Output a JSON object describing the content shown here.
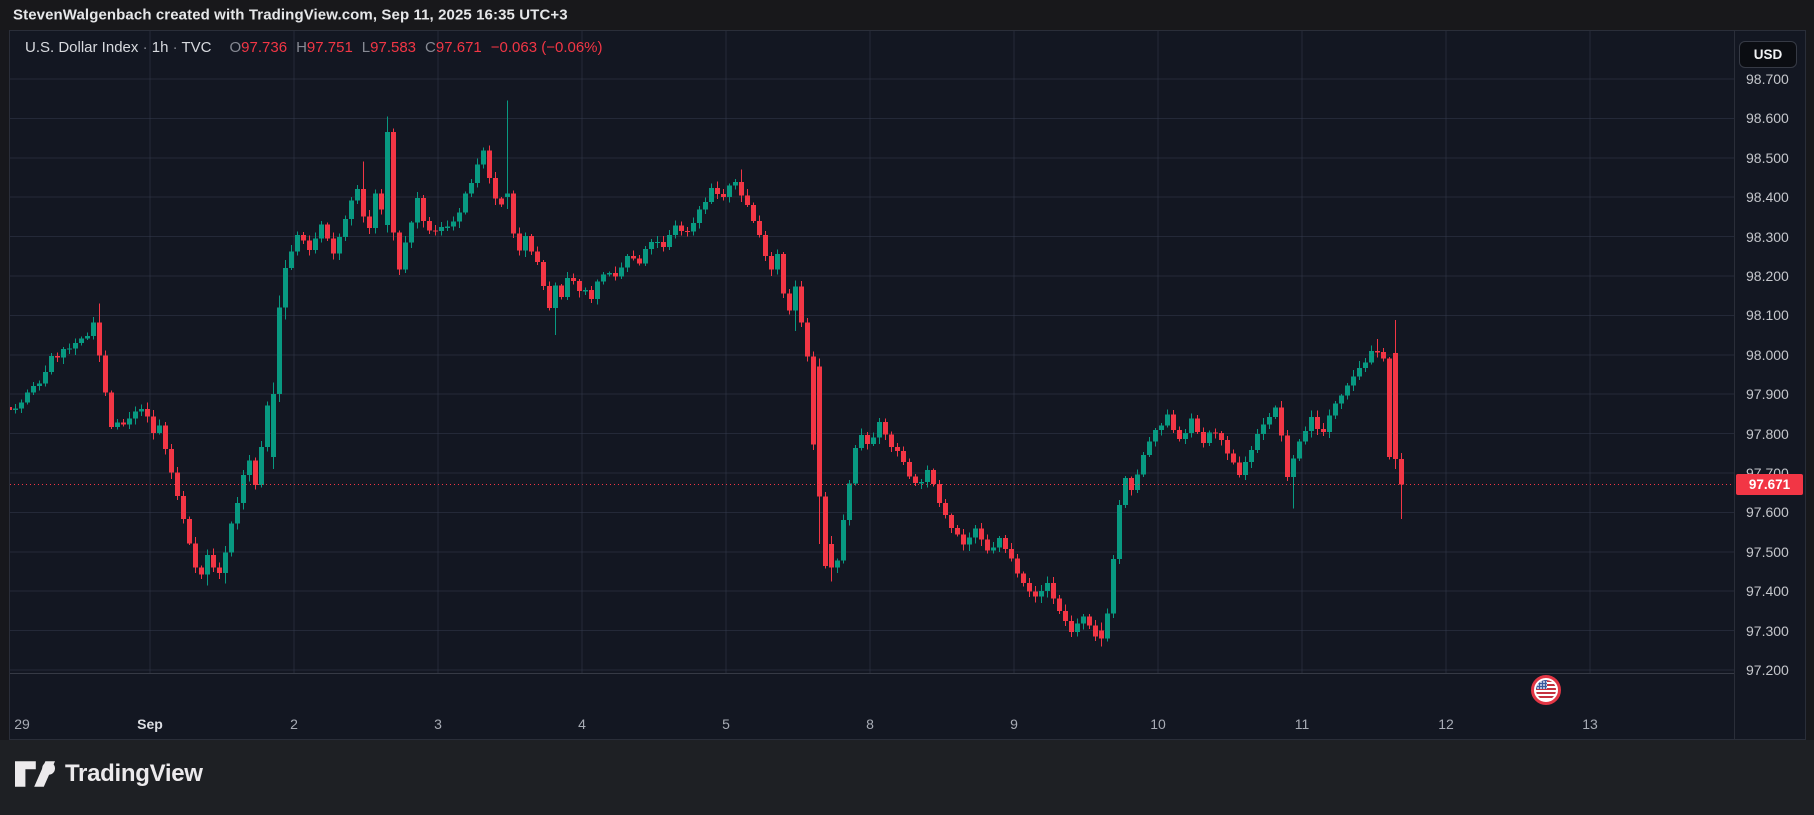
{
  "attribution": {
    "text": "StevenWalgenbach created with TradingView.com, Sep 11, 2025 16:35 UTC+3"
  },
  "header": {
    "symbol": "U.S. Dollar Index",
    "separator": "·",
    "interval": "1h",
    "exchange": "TVC",
    "ohlc": [
      {
        "label": "O",
        "value": "97.736"
      },
      {
        "label": "H",
        "value": "97.751"
      },
      {
        "label": "L",
        "value": "97.583"
      },
      {
        "label": "C",
        "value": "97.671"
      }
    ],
    "change": "−0.063 (−0.06%)"
  },
  "currency_button": {
    "label": "USD"
  },
  "price_axis": {
    "labels": [
      "98.700",
      "98.600",
      "98.500",
      "98.400",
      "98.300",
      "98.200",
      "98.100",
      "98.000",
      "97.900",
      "97.800",
      "97.700",
      "97.600",
      "97.500",
      "97.400",
      "97.300",
      "97.200"
    ],
    "badge": {
      "text": "97.671"
    }
  },
  "time_axis": {
    "labels": [
      {
        "t": "29",
        "strong": false
      },
      {
        "t": "Sep",
        "strong": true
      },
      {
        "t": "2",
        "strong": false
      },
      {
        "t": "3",
        "strong": false
      },
      {
        "t": "4",
        "strong": false
      },
      {
        "t": "5",
        "strong": false
      },
      {
        "t": "8",
        "strong": false
      },
      {
        "t": "9",
        "strong": false
      },
      {
        "t": "10",
        "strong": false
      },
      {
        "t": "11",
        "strong": false
      },
      {
        "t": "12",
        "strong": false
      },
      {
        "t": "13",
        "strong": false
      }
    ]
  },
  "footer": {
    "brand": "TradingView"
  },
  "colors": {
    "up": "#089981",
    "down": "#f23645",
    "accent_red": "#f23645",
    "grid": "rgba(54,60,78,0.5)",
    "chart_bg": "#131722"
  },
  "chart_data": {
    "type": "candlestick",
    "title": "U.S. Dollar Index",
    "interval": "1h",
    "exchange": "TVC",
    "price_axis": {
      "min": 97.2,
      "max": 98.7,
      "step": 0.1
    },
    "x_days": [
      "29",
      "Sep",
      "2",
      "3",
      "4",
      "5",
      "8",
      "9",
      "10",
      "11",
      "12",
      "13"
    ],
    "bars_per_day": 24,
    "bar_count": 233,
    "current_price": 97.671,
    "last_bar": {
      "open": 97.736,
      "high": 97.751,
      "low": 97.583,
      "close": 97.671,
      "change": -0.063,
      "change_pct": -0.06
    },
    "session_high": 98.645,
    "session_low": 97.26,
    "anchors": [
      [
        0,
        97.88
      ],
      [
        2,
        97.86
      ],
      [
        4,
        97.9
      ],
      [
        6,
        97.93
      ],
      [
        8,
        97.99
      ],
      [
        10,
        98.01
      ],
      [
        12,
        98.02
      ],
      [
        14,
        98.05
      ],
      [
        15,
        98.09
      ],
      [
        16,
        98.0
      ],
      [
        17,
        97.9
      ],
      [
        18,
        97.82
      ],
      [
        20,
        97.82
      ],
      [
        22,
        97.85
      ],
      [
        23,
        97.87
      ],
      [
        25,
        97.8
      ],
      [
        26,
        97.82
      ],
      [
        28,
        97.7
      ],
      [
        30,
        97.58
      ],
      [
        32,
        97.47
      ],
      [
        33,
        97.44
      ],
      [
        34,
        97.49
      ],
      [
        36,
        97.44
      ],
      [
        38,
        97.57
      ],
      [
        40,
        97.69
      ],
      [
        41,
        97.73
      ],
      [
        42,
        97.67
      ],
      [
        43,
        97.76
      ],
      [
        47,
        98.2
      ],
      [
        49,
        98.31
      ],
      [
        51,
        98.26
      ],
      [
        53,
        98.33
      ],
      [
        55,
        98.25
      ],
      [
        57,
        98.35
      ],
      [
        59,
        98.42
      ],
      [
        60,
        98.35
      ],
      [
        61,
        98.32
      ],
      [
        62,
        98.41
      ],
      [
        65,
        98.26
      ],
      [
        66,
        98.22
      ],
      [
        68,
        98.34
      ],
      [
        69,
        98.39
      ],
      [
        70,
        98.33
      ],
      [
        72,
        98.31
      ],
      [
        74,
        98.33
      ],
      [
        76,
        98.36
      ],
      [
        78,
        98.44
      ],
      [
        80,
        98.51
      ],
      [
        81,
        98.44
      ],
      [
        82,
        98.4
      ],
      [
        84,
        98.35
      ],
      [
        85,
        98.3
      ],
      [
        86,
        98.27
      ],
      [
        87,
        98.31
      ],
      [
        89,
        98.23
      ],
      [
        91,
        98.12
      ],
      [
        92,
        98.17
      ],
      [
        93,
        98.14
      ],
      [
        94,
        98.19
      ],
      [
        96,
        98.17
      ],
      [
        98,
        98.15
      ],
      [
        100,
        98.21
      ],
      [
        102,
        98.19
      ],
      [
        104,
        98.25
      ],
      [
        106,
        98.23
      ],
      [
        108,
        98.29
      ],
      [
        110,
        98.27
      ],
      [
        112,
        98.33
      ],
      [
        114,
        98.31
      ],
      [
        116,
        98.37
      ],
      [
        118,
        98.42
      ],
      [
        120,
        98.4
      ],
      [
        122,
        98.44
      ],
      [
        124,
        98.38
      ],
      [
        126,
        98.3
      ],
      [
        128,
        98.22
      ],
      [
        129,
        98.26
      ],
      [
        130,
        98.16
      ],
      [
        131,
        98.12
      ],
      [
        132,
        98.17
      ],
      [
        133,
        98.08
      ],
      [
        134,
        97.99
      ],
      [
        136,
        97.55
      ],
      [
        137,
        97.46
      ],
      [
        138,
        97.52
      ],
      [
        139,
        97.47
      ],
      [
        140,
        97.58
      ],
      [
        141,
        97.68
      ],
      [
        142,
        97.76
      ],
      [
        143,
        97.8
      ],
      [
        144,
        97.78
      ],
      [
        146,
        97.82
      ],
      [
        148,
        97.77
      ],
      [
        150,
        97.73
      ],
      [
        152,
        97.67
      ],
      [
        154,
        97.7
      ],
      [
        156,
        97.63
      ],
      [
        158,
        97.57
      ],
      [
        160,
        97.52
      ],
      [
        162,
        97.55
      ],
      [
        164,
        97.5
      ],
      [
        166,
        97.53
      ],
      [
        168,
        97.48
      ],
      [
        170,
        97.43
      ],
      [
        172,
        97.38
      ],
      [
        174,
        97.42
      ],
      [
        176,
        97.35
      ],
      [
        178,
        97.3
      ],
      [
        180,
        97.33
      ],
      [
        182,
        97.28
      ],
      [
        184,
        97.35
      ],
      [
        185,
        97.48
      ],
      [
        186,
        97.62
      ],
      [
        187,
        97.68
      ],
      [
        188,
        97.65
      ],
      [
        189,
        97.7
      ],
      [
        190,
        97.74
      ],
      [
        191,
        97.78
      ],
      [
        192,
        97.8
      ],
      [
        194,
        97.84
      ],
      [
        196,
        97.79
      ],
      [
        198,
        97.83
      ],
      [
        200,
        97.78
      ],
      [
        202,
        97.81
      ],
      [
        204,
        97.74
      ],
      [
        206,
        97.7
      ],
      [
        208,
        97.76
      ],
      [
        210,
        97.83
      ],
      [
        212,
        97.86
      ],
      [
        213,
        97.8
      ],
      [
        214,
        97.68
      ],
      [
        215,
        97.74
      ],
      [
        216,
        97.78
      ],
      [
        218,
        97.84
      ],
      [
        220,
        97.8
      ],
      [
        222,
        97.88
      ],
      [
        224,
        97.93
      ],
      [
        226,
        97.97
      ],
      [
        228,
        98.0
      ],
      [
        230,
        98.0
      ],
      [
        231,
        97.74
      ],
      [
        232,
        97.67
      ]
    ],
    "spike_highs": {
      "15": 98.13,
      "59": 98.49,
      "122": 98.47,
      "228": 98.04
    },
    "spike_lows": {
      "33": 97.415,
      "36": 97.42,
      "91": 98.05,
      "131": 98.06,
      "214": 97.61
    },
    "overrides": {
      "44": [
        97.74,
        97.93,
        97.71,
        97.9
      ],
      "45": [
        97.9,
        98.15,
        97.88,
        98.12
      ],
      "46": [
        98.12,
        98.24,
        98.09,
        98.22
      ],
      "63": [
        98.33,
        98.605,
        98.31,
        98.565
      ],
      "64": [
        98.565,
        98.575,
        98.29,
        98.31
      ],
      "83": [
        98.4,
        98.645,
        98.37,
        98.41
      ],
      "135": [
        97.97,
        97.99,
        97.52,
        97.64
      ],
      "137": [
        97.52,
        97.54,
        97.425,
        97.46
      ],
      "182": [
        97.3,
        97.32,
        97.26,
        97.28
      ],
      "231": [
        98.005,
        98.088,
        97.71,
        97.735
      ],
      "232": [
        97.736,
        97.751,
        97.583,
        97.671
      ]
    },
    "seed": 7,
    "legend_position": "none",
    "grid": true
  }
}
